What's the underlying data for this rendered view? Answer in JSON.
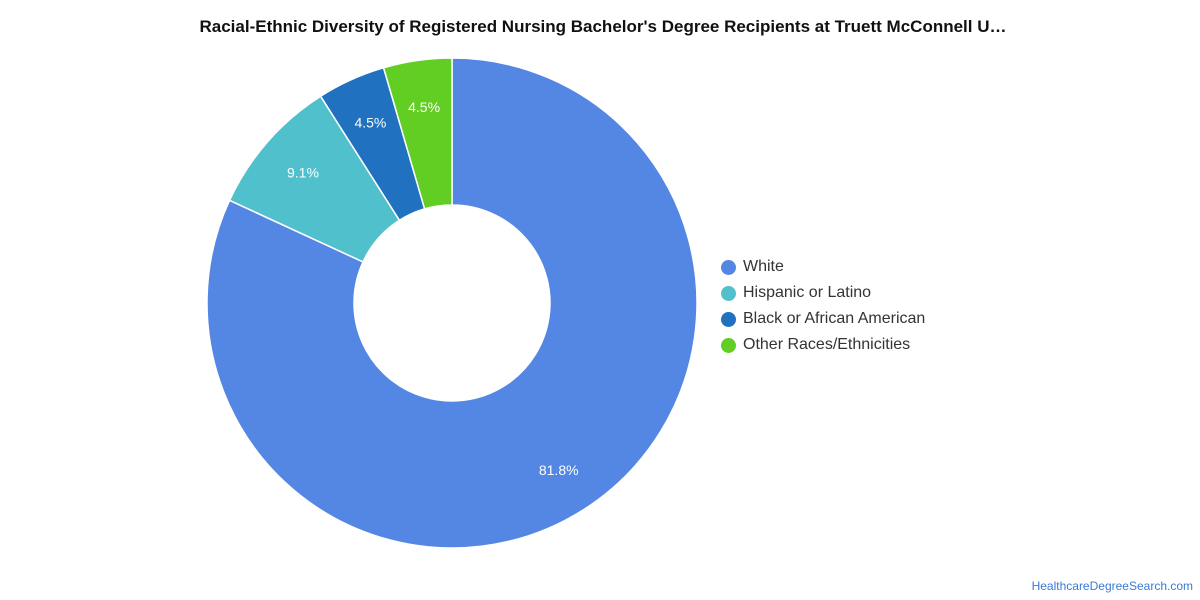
{
  "chart_data": {
    "type": "pie",
    "donut": true,
    "title": "Racial-Ethnic Diversity of Registered Nursing Bachelor's Degree Recipients at Truett McConnell U…",
    "series": [
      {
        "name": "White",
        "value": 81.8,
        "label": "81.8%",
        "color": "#5486e3"
      },
      {
        "name": "Hispanic or Latino",
        "value": 9.1,
        "label": "9.1%",
        "color": "#51c0cd"
      },
      {
        "name": "Black or African American",
        "value": 4.5,
        "label": "4.5%",
        "color": "#2171c1"
      },
      {
        "name": "Other Races/Ethnicities",
        "value": 4.5,
        "label": "4.5%",
        "color": "#62ce24"
      }
    ],
    "legend_position": "right"
  },
  "source": "HealthcareDegreeSearch.com"
}
